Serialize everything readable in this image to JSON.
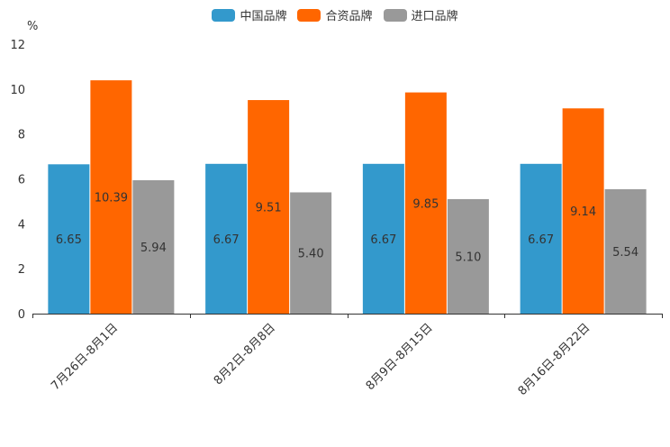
{
  "chart_data": {
    "type": "bar",
    "title": "",
    "xlabel": "",
    "ylabel": "%",
    "ylim": [
      0,
      12
    ],
    "yticks": [
      0,
      2,
      4,
      6,
      8,
      10,
      12
    ],
    "grid": false,
    "legend_position": "top-center",
    "categories": [
      "7月26日-8月1日",
      "8月2日-8月8日",
      "8月9日-8月15日",
      "8月16日-8月22日"
    ],
    "series": [
      {
        "name": "中国品牌",
        "color": "#3399cc",
        "values": [
          6.65,
          6.67,
          6.67,
          6.67
        ],
        "labels": [
          "6.65",
          "6.67",
          "6.67",
          "6.67"
        ]
      },
      {
        "name": "合资品牌",
        "color": "#ff6600",
        "values": [
          10.39,
          9.51,
          9.85,
          9.14
        ],
        "labels": [
          "10.39",
          "9.51",
          "9.85",
          "9.14"
        ]
      },
      {
        "name": "进口品牌",
        "color": "#999999",
        "values": [
          5.94,
          5.4,
          5.1,
          5.54
        ],
        "labels": [
          "5.94",
          "5.40",
          "5.10",
          "5.54"
        ]
      }
    ]
  }
}
